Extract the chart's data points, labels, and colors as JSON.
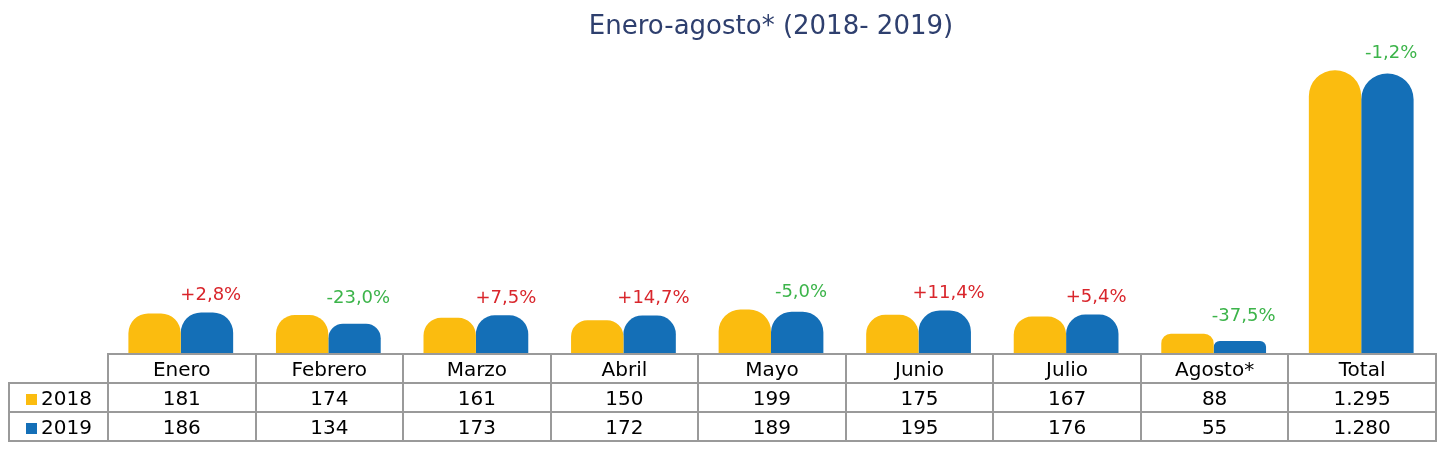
{
  "chart_data": {
    "type": "bar",
    "title": "Enero-agosto* (2018- 2019)",
    "categories": [
      "Enero",
      "Febrero",
      "Marzo",
      "Abril",
      "Mayo",
      "Junio",
      "Julio",
      "Agosto*",
      "Total"
    ],
    "series": [
      {
        "name": "2018",
        "color": "#fbbc0f",
        "values": [
          181,
          174,
          161,
          150,
          199,
          175,
          167,
          88,
          1295
        ],
        "value_labels": [
          "181",
          "174",
          "161",
          "150",
          "199",
          "175",
          "167",
          "88",
          "1.295"
        ]
      },
      {
        "name": "2019",
        "color": "#146fb7",
        "values": [
          186,
          134,
          173,
          172,
          189,
          195,
          176,
          55,
          1280
        ],
        "value_labels": [
          "186",
          "134",
          "173",
          "172",
          "189",
          "195",
          "176",
          "55",
          "1.280"
        ]
      }
    ],
    "annotations": [
      "+2,8%",
      "-23,0%",
      "+7,5%",
      "+14,7%",
      "-5,0%",
      "+11,4%",
      "+5,4%",
      "-37,5%",
      "-1,2%"
    ],
    "legend": "bottom"
  }
}
